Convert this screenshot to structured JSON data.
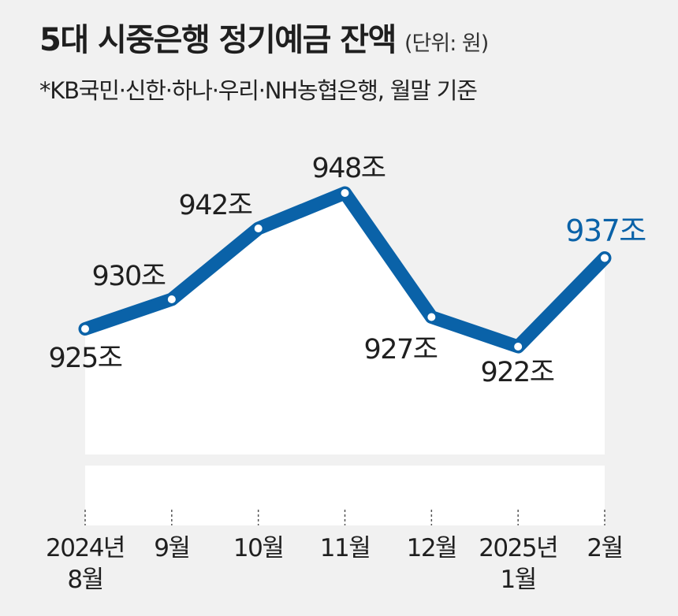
{
  "header": {
    "title": "5대 시중은행 정기예금 잔액",
    "unit": "(단위: 원)",
    "subtitle": "*KB국민·신한·하나·우리·NH농협은행, 월말 기준"
  },
  "colors": {
    "line": "#0a62a8",
    "highlight": "#0a62a8",
    "area": "#ffffff",
    "background": "#f1f1f1"
  },
  "chart_data": {
    "type": "area",
    "categories": [
      [
        "2024년",
        "8월"
      ],
      [
        "9월"
      ],
      [
        "10월"
      ],
      [
        "11월"
      ],
      [
        "12월"
      ],
      [
        "2025년",
        "1월"
      ],
      [
        "2월"
      ]
    ],
    "values": [
      925,
      930,
      942,
      948,
      927,
      922,
      937
    ],
    "data_labels": [
      "925조",
      "930조",
      "942조",
      "948조",
      "927조",
      "922조",
      "937조"
    ],
    "highlight_index": 6,
    "xlabel": "",
    "ylabel": "",
    "axis_break": true,
    "grid": false,
    "legend": "none"
  }
}
